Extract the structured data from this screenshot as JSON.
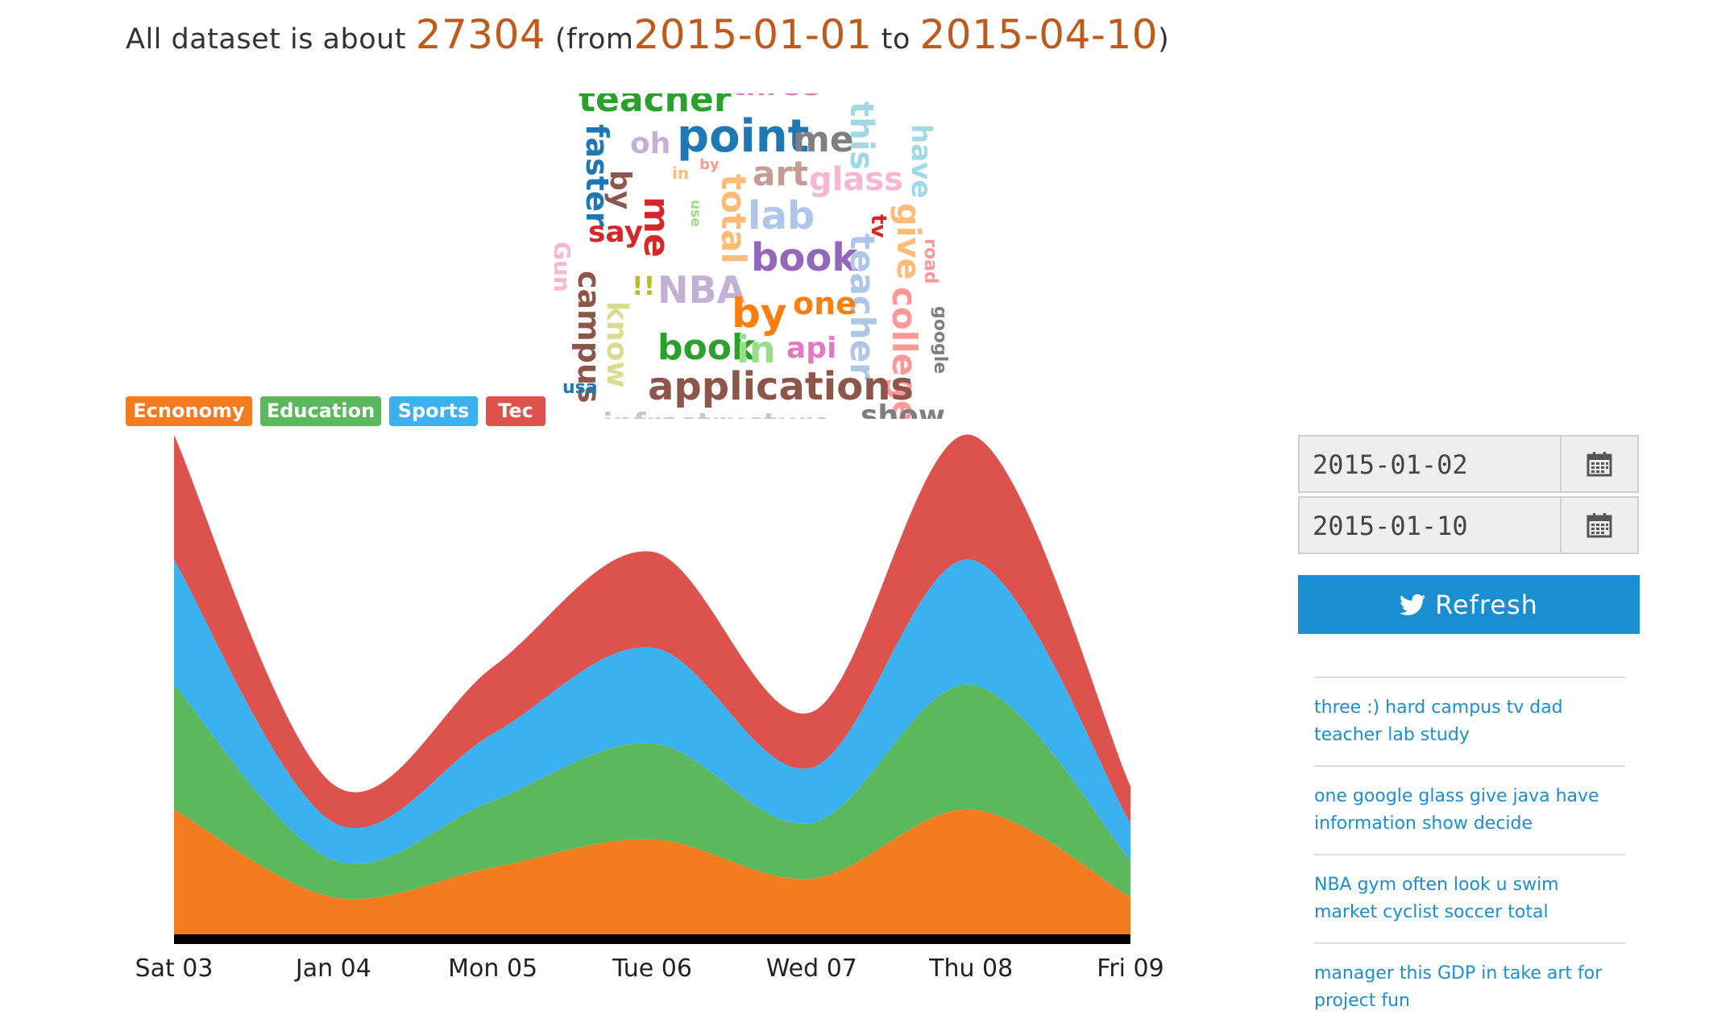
{
  "summary": {
    "prefix": "All dataset is about",
    "count": "27304",
    "from_label": "(from",
    "start": "2015-01-01",
    "to_label": "to",
    "end": "2015-04-10",
    "close": ")"
  },
  "word_cloud": [
    {
      "text": "teacher",
      "color": "#2ca02c"
    },
    {
      "text": "three",
      "color": "#e377c2"
    },
    {
      "text": "point",
      "color": "#1f77b4"
    },
    {
      "text": "me",
      "color": "#7f7f7f"
    },
    {
      "text": "this",
      "color": "#9edae5"
    },
    {
      "text": "have",
      "color": "#9edae5"
    },
    {
      "text": "faster",
      "color": "#1f77b4"
    },
    {
      "text": "oh",
      "color": "#c5b0d5"
    },
    {
      "text": "by",
      "color": "#8c564b"
    },
    {
      "text": "art",
      "color": "#c49c94"
    },
    {
      "text": "glass",
      "color": "#f7b6d2"
    },
    {
      "text": "by",
      "color": "#ff9896"
    },
    {
      "text": "in",
      "color": "#ffbb78"
    },
    {
      "text": "me",
      "color": "#d62728"
    },
    {
      "text": "use",
      "color": "#98df8a"
    },
    {
      "text": "total",
      "color": "#ffbb78"
    },
    {
      "text": "lab",
      "color": "#aec7e8"
    },
    {
      "text": "tv",
      "color": "#d62728"
    },
    {
      "text": "give",
      "color": "#ffbb78"
    },
    {
      "text": "say",
      "color": "#d62728"
    },
    {
      "text": "book",
      "color": "#9467bd"
    },
    {
      "text": "teacher",
      "color": "#aec7e8"
    },
    {
      "text": "road",
      "color": "#ff9896"
    },
    {
      "text": "Gun",
      "color": "#f7b6d2"
    },
    {
      "text": "campus",
      "color": "#8c564b"
    },
    {
      "text": "!!",
      "color": "#bcbd22"
    },
    {
      "text": "NBA",
      "color": "#c5b0d5"
    },
    {
      "text": "by",
      "color": "#ff7f0e"
    },
    {
      "text": "one",
      "color": "#ff7f0e"
    },
    {
      "text": "know",
      "color": "#dbdb8d"
    },
    {
      "text": "college",
      "color": "#ff9896"
    },
    {
      "text": "google",
      "color": "#7f7f7f"
    },
    {
      "text": "book",
      "color": "#2ca02c"
    },
    {
      "text": "in",
      "color": "#98df8a"
    },
    {
      "text": "api",
      "color": "#e377c2"
    },
    {
      "text": "usa",
      "color": "#1f77b4"
    },
    {
      "text": "applications",
      "color": "#8c564b"
    },
    {
      "text": "infrastructure",
      "color": "#c7c7c7"
    },
    {
      "text": "show",
      "color": "#7f7f7f"
    }
  ],
  "chart_data": {
    "type": "area",
    "stacked": true,
    "categories": [
      "Sat 03",
      "Jan 04",
      "Mon 05",
      "Tue 06",
      "Wed 07",
      "Thu 08",
      "Fri 09"
    ],
    "series": [
      {
        "name": "Ecnonomy",
        "color": "#f47c20",
        "values": [
          155,
          46,
          83,
          118,
          69,
          155,
          46
        ]
      },
      {
        "name": "Education",
        "color": "#5cb85c",
        "values": [
          155,
          46,
          83,
          119,
          69,
          155,
          46
        ]
      },
      {
        "name": "Sports",
        "color": "#3bb1ef",
        "values": [
          155,
          47,
          83,
          119,
          69,
          155,
          46
        ]
      },
      {
        "name": "Tec",
        "color": "#de524e",
        "values": [
          155,
          47,
          83,
          119,
          69,
          155,
          46
        ]
      }
    ],
    "ylim": [
      0,
      620
    ],
    "xlabel": "",
    "ylabel": "",
    "grid": false
  },
  "date_range": {
    "start": "2015-01-02",
    "end": "2015-01-10",
    "calendar_icon": "calendar-icon"
  },
  "refresh": {
    "label": "Refresh",
    "icon": "twitter-icon"
  },
  "tweets": [
    "three :) hard campus tv dad teacher lab study",
    "one google glass give java have information show decide",
    "NBA gym often look u swim market cyclist soccer total",
    "manager this GDP in take art for project fun"
  ]
}
